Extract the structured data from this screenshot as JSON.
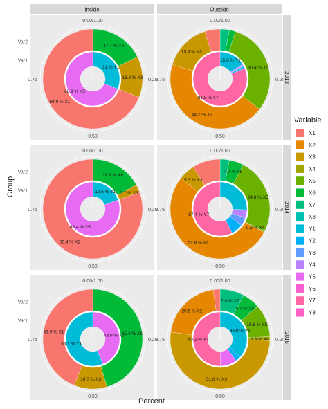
{
  "labels": {
    "x_axis": "Percent",
    "y_axis": "Group",
    "legend_title": "Variable"
  },
  "colors": {
    "X1": "#F8766D",
    "X2": "#E58700",
    "X3": "#C99800",
    "X4": "#A3A500",
    "X5": "#6BB100",
    "X6": "#00BA38",
    "X7": "#00BF7D",
    "X8": "#00C0AF",
    "Y1": "#00BCD8",
    "Y2": "#00B0F6",
    "Y3": "#619CFF",
    "Y4": "#B983FF",
    "Y5": "#E76BF3",
    "Y6": "#FD61D1",
    "Y7": "#FF67A4",
    "Y8": "#FF61C3"
  },
  "chart_data": {
    "type": "pie",
    "variant": "faceted donut (polar stacked bar)",
    "x_label": "Percent",
    "y_label": "Group",
    "legend_title": "Variable",
    "legend_placement": "right",
    "legend": [
      "X1",
      "X2",
      "X3",
      "X4",
      "X5",
      "X6",
      "X7",
      "X8",
      "Y1",
      "Y2",
      "Y3",
      "Y4",
      "Y5",
      "Y6",
      "Y7",
      "Y8"
    ],
    "facet_columns": [
      "Inside",
      "Outside"
    ],
    "facet_rows": [
      "2013",
      "2014",
      "2015"
    ],
    "ring_groups": [
      "Var1",
      "Var2"
    ],
    "angle_ticks": [
      "0.00/1.00",
      "0.25",
      "0.50",
      "0.75"
    ],
    "panels": [
      {
        "column": "Inside",
        "row": "2013",
        "outer": [
          {
            "var": "X6",
            "value": 17.7,
            "label": "17.7 % X6"
          },
          {
            "var": "X3",
            "value": 13.3,
            "label": "13.3 % X3"
          },
          {
            "var": "X1",
            "value": 68.9,
            "label": "68.9 % X1"
          }
        ],
        "inner": [
          {
            "var": "Y1",
            "value": 31.1,
            "label": "31 % Y1"
          },
          {
            "var": "Y5",
            "value": 68.9,
            "label": "68.9 % Y5"
          }
        ]
      },
      {
        "column": "Outside",
        "row": "2013",
        "outer": [
          {
            "var": "X7",
            "value": 3.0,
            "label": ""
          },
          {
            "var": "X6",
            "value": 2.0,
            "label": ""
          },
          {
            "var": "X5",
            "value": 30.4,
            "label": "30.4 % X5"
          },
          {
            "var": "X2",
            "value": 44.2,
            "label": "44.2 % X2"
          },
          {
            "var": "X3",
            "value": 15.4,
            "label": "15.4 % X3"
          },
          {
            "var": "X1",
            "value": 5.0,
            "label": ""
          }
        ],
        "inner": [
          {
            "var": "Y1",
            "value": 15.8,
            "label": "15.8 % Y1"
          },
          {
            "var": "Y4",
            "value": 0.9,
            "label": ""
          },
          {
            "var": "Y3",
            "value": 0.6,
            "label": ""
          },
          {
            "var": "Y2",
            "value": 1.2,
            "label": ""
          },
          {
            "var": "Y7",
            "value": 81.5,
            "label": "81.5 % Y7"
          }
        ]
      },
      {
        "column": "Inside",
        "row": "2014",
        "outer": [
          {
            "var": "X6",
            "value": 16.9,
            "label": "16.9 % X6"
          },
          {
            "var": "X3",
            "value": 2.7,
            "label": "2.7 % X3"
          },
          {
            "var": "X1",
            "value": 80.4,
            "label": "80.4 % X1"
          }
        ],
        "inner": [
          {
            "var": "Y1",
            "value": 19.6,
            "label": "19.6 % Y1"
          },
          {
            "var": "Y5",
            "value": 80.4,
            "label": "80.4 % Y5"
          }
        ]
      },
      {
        "column": "Outside",
        "row": "2014",
        "outer": [
          {
            "var": "X7",
            "value": 3.0,
            "label": ""
          },
          {
            "var": "X6",
            "value": 4.7,
            "label": "4.7 % X6"
          },
          {
            "var": "X5",
            "value": 24.8,
            "label": "24.8 % X5"
          },
          {
            "var": "X4",
            "value": 0.3,
            "label": "0.3 % X4"
          },
          {
            "var": "X2",
            "value": 52.8,
            "label": "52.8 % X2"
          },
          {
            "var": "X3",
            "value": 5.3,
            "label": "5.3 % X3"
          },
          {
            "var": "X1",
            "value": 9.1,
            "label": ""
          }
        ],
        "inner": [
          {
            "var": "Y1",
            "value": 25.5,
            "label": ""
          },
          {
            "var": "Y4",
            "value": 5.0,
            "label": ""
          },
          {
            "var": "Y3",
            "value": 5.0,
            "label": ""
          },
          {
            "var": "Y2",
            "value": 7.1,
            "label": ""
          },
          {
            "var": "Y7",
            "value": 57.4,
            "label": "57.4 % Y7"
          }
        ]
      },
      {
        "column": "Inside",
        "row": "2015",
        "outer": [
          {
            "var": "X6",
            "value": 45.4,
            "label": "45.4 % X6"
          },
          {
            "var": "X3",
            "value": 10.7,
            "label": "10.7 % X3"
          },
          {
            "var": "X1",
            "value": 43.9,
            "label": "43.9 % X1"
          }
        ],
        "inner": [
          {
            "var": "Y5",
            "value": 43.9,
            "label": "43.9 % Y5"
          },
          {
            "var": "Y1",
            "value": 56.1,
            "label": "56.1 % Y1"
          }
        ]
      },
      {
        "column": "Outside",
        "row": "2015",
        "outer": [
          {
            "var": "X7",
            "value": 7.9,
            "label": "7.9 % X7"
          },
          {
            "var": "X6",
            "value": 5.7,
            "label": "5.7 % X6"
          },
          {
            "var": "X5",
            "value": 10.6,
            "label": "10.6 % X5"
          },
          {
            "var": "X4",
            "value": 1.3,
            "label": "1.3 % X4"
          },
          {
            "var": "X3",
            "value": 51.8,
            "label": "51.8 % X3"
          },
          {
            "var": "X2",
            "value": 20.5,
            "label": "20.5 % X2"
          },
          {
            "var": "X1",
            "value": 2.2,
            "label": ""
          }
        ],
        "inner": [
          {
            "var": "Y1",
            "value": 36.8,
            "label": "36.8 % Y1"
          },
          {
            "var": "Y2",
            "value": 3.0,
            "label": ""
          },
          {
            "var": "Y5",
            "value": 10.0,
            "label": ""
          },
          {
            "var": "Y7",
            "value": 50.2,
            "label": "50.2 % Y7"
          }
        ]
      }
    ]
  }
}
